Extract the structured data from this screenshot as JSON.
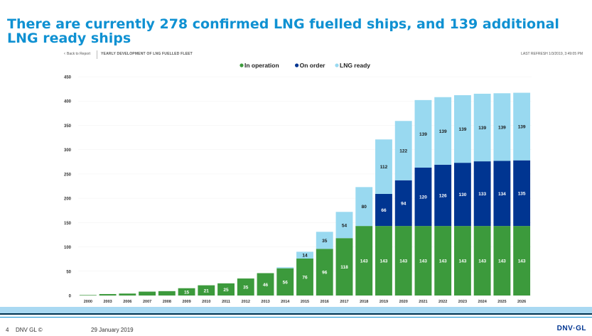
{
  "slide": {
    "title": "There are currently 278 confirmed LNG fuelled ships, and 139 additional LNG ready ships"
  },
  "report": {
    "back_label": "Back to Report",
    "title": "YEARLY DEVELOPMENT OF LNG FUELLED FLEET",
    "last_refresh": "LAST REFRESH 1/3/2019, 3:49:05 PM"
  },
  "footer": {
    "page_number": "4",
    "company": "DNV GL ©",
    "date": "29 January 2019",
    "logo": "DNV·GL"
  },
  "colors": {
    "in_operation": "#3c9a3c",
    "on_order": "#003591",
    "lng_ready": "#99d9f0",
    "title": "#0f91d2"
  },
  "chart_data": {
    "type": "bar",
    "stacked": true,
    "categories": [
      "2000",
      "2003",
      "2006",
      "2007",
      "2008",
      "2009",
      "2010",
      "2011",
      "2012",
      "2013",
      "2014",
      "2015",
      "2016",
      "2017",
      "2018",
      "2019",
      "2020",
      "2021",
      "2022",
      "2023",
      "2024",
      "2025",
      "2026"
    ],
    "series": [
      {
        "name": "In operation",
        "color": "#3c9a3c",
        "values": [
          1,
          3,
          4,
          8,
          9,
          15,
          21,
          25,
          35,
          46,
          56,
          76,
          96,
          118,
          143,
          143,
          143,
          143,
          143,
          143,
          143,
          143,
          143
        ]
      },
      {
        "name": "On order",
        "color": "#003591",
        "values": [
          0,
          0,
          0,
          0,
          0,
          0,
          0,
          0,
          0,
          0,
          0,
          0,
          0,
          0,
          0,
          66,
          94,
          120,
          126,
          130,
          133,
          134,
          135
        ]
      },
      {
        "name": "LNG ready",
        "color": "#99d9f0",
        "values": [
          0,
          0,
          0,
          0,
          0,
          0,
          0,
          0,
          0,
          0,
          2,
          14,
          35,
          54,
          80,
          112,
          122,
          139,
          139,
          139,
          139,
          139,
          139
        ]
      }
    ],
    "labels": [
      {
        "series": 0,
        "index": 5,
        "text": "15"
      },
      {
        "series": 0,
        "index": 6,
        "text": "21"
      },
      {
        "series": 0,
        "index": 7,
        "text": "25"
      },
      {
        "series": 0,
        "index": 8,
        "text": "35"
      },
      {
        "series": 0,
        "index": 9,
        "text": "46"
      },
      {
        "series": 0,
        "index": 10,
        "text": "56"
      },
      {
        "series": 0,
        "index": 11,
        "text": "76"
      },
      {
        "series": 0,
        "index": 12,
        "text": "96"
      },
      {
        "series": 0,
        "index": 13,
        "text": "118"
      },
      {
        "series": 0,
        "index": 14,
        "text": "143"
      },
      {
        "series": 0,
        "index": 15,
        "text": "143"
      },
      {
        "series": 0,
        "index": 16,
        "text": "143"
      },
      {
        "series": 0,
        "index": 17,
        "text": "143"
      },
      {
        "series": 0,
        "index": 18,
        "text": "143"
      },
      {
        "series": 0,
        "index": 19,
        "text": "143"
      },
      {
        "series": 0,
        "index": 20,
        "text": "143"
      },
      {
        "series": 0,
        "index": 21,
        "text": "143"
      },
      {
        "series": 0,
        "index": 22,
        "text": "143"
      },
      {
        "series": 1,
        "index": 15,
        "text": "66"
      },
      {
        "series": 1,
        "index": 16,
        "text": "94"
      },
      {
        "series": 1,
        "index": 17,
        "text": "120"
      },
      {
        "series": 1,
        "index": 18,
        "text": "126"
      },
      {
        "series": 1,
        "index": 19,
        "text": "130"
      },
      {
        "series": 1,
        "index": 20,
        "text": "133"
      },
      {
        "series": 1,
        "index": 21,
        "text": "134"
      },
      {
        "series": 1,
        "index": 22,
        "text": "135"
      },
      {
        "series": 2,
        "index": 11,
        "text": "14"
      },
      {
        "series": 2,
        "index": 12,
        "text": "35"
      },
      {
        "series": 2,
        "index": 13,
        "text": "54"
      },
      {
        "series": 2,
        "index": 14,
        "text": "80"
      },
      {
        "series": 2,
        "index": 15,
        "text": "112"
      },
      {
        "series": 2,
        "index": 16,
        "text": "122"
      },
      {
        "series": 2,
        "index": 17,
        "text": "139"
      },
      {
        "series": 2,
        "index": 18,
        "text": "139"
      },
      {
        "series": 2,
        "index": 19,
        "text": "139"
      },
      {
        "series": 2,
        "index": 20,
        "text": "139"
      },
      {
        "series": 2,
        "index": 21,
        "text": "139"
      },
      {
        "series": 2,
        "index": 22,
        "text": "139"
      }
    ],
    "yticks": [
      0,
      50,
      100,
      150,
      200,
      250,
      300,
      350,
      400,
      450
    ],
    "ylim": [
      0,
      450
    ],
    "legend_position": "top-center",
    "grid": false
  }
}
